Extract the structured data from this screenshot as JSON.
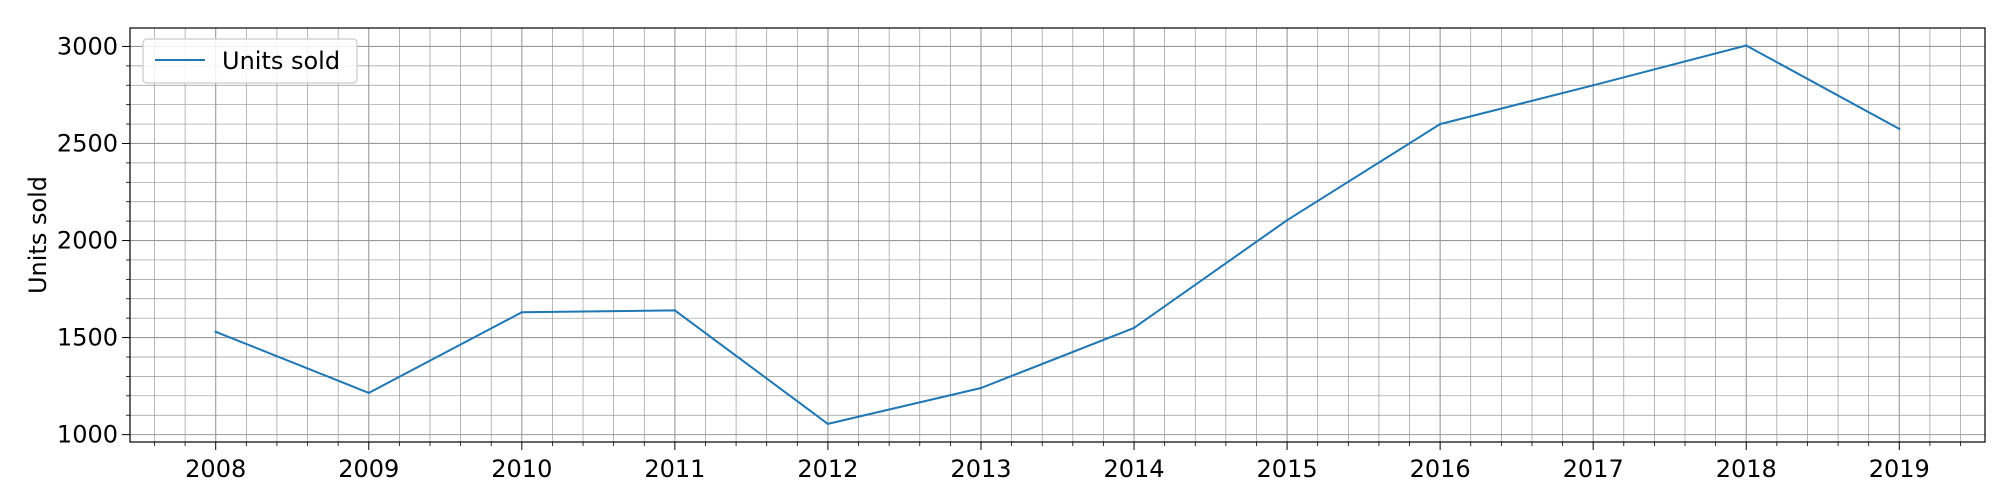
{
  "chart_data": {
    "type": "line",
    "x": [
      "2008",
      "2009",
      "2010",
      "2011",
      "2012",
      "2013",
      "2014",
      "2015",
      "2016",
      "2017",
      "2018",
      "2019"
    ],
    "series": [
      {
        "name": "Units sold",
        "values": [
          1530,
          1215,
          1630,
          1640,
          1055,
          1240,
          1550,
          2105,
          2600,
          2800,
          3005,
          2575
        ],
        "color": "#1f77b4"
      }
    ],
    "xlabel": "",
    "ylabel": "Units sold",
    "xlim": [
      2007.44,
      2019.56
    ],
    "ylim": [
      962,
      3095
    ],
    "yticks": [
      1000,
      1500,
      2000,
      2500,
      3000
    ],
    "grid": {
      "major": true,
      "minor": true,
      "color": "#999999"
    },
    "legend_position": "upper left"
  }
}
